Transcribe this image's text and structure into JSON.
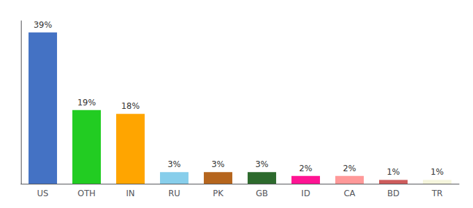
{
  "chart_data": {
    "type": "bar",
    "categories": [
      "US",
      "OTH",
      "IN",
      "RU",
      "PK",
      "GB",
      "ID",
      "CA",
      "BD",
      "TR"
    ],
    "values": [
      39,
      19,
      18,
      3,
      3,
      3,
      2,
      2,
      1,
      1
    ],
    "value_labels": [
      "39%",
      "19%",
      "18%",
      "3%",
      "3%",
      "3%",
      "2%",
      "2%",
      "1%",
      "1%"
    ],
    "colors": [
      "#4472c4",
      "#22cc22",
      "#ffa500",
      "#87ceeb",
      "#b5651d",
      "#2d6a2d",
      "#ff1493",
      "#ff9999",
      "#cd5c5c",
      "#f5f5dc"
    ],
    "ylim": [
      0,
      42
    ],
    "data_labels": true,
    "tick_labels": "x",
    "grid": false
  }
}
